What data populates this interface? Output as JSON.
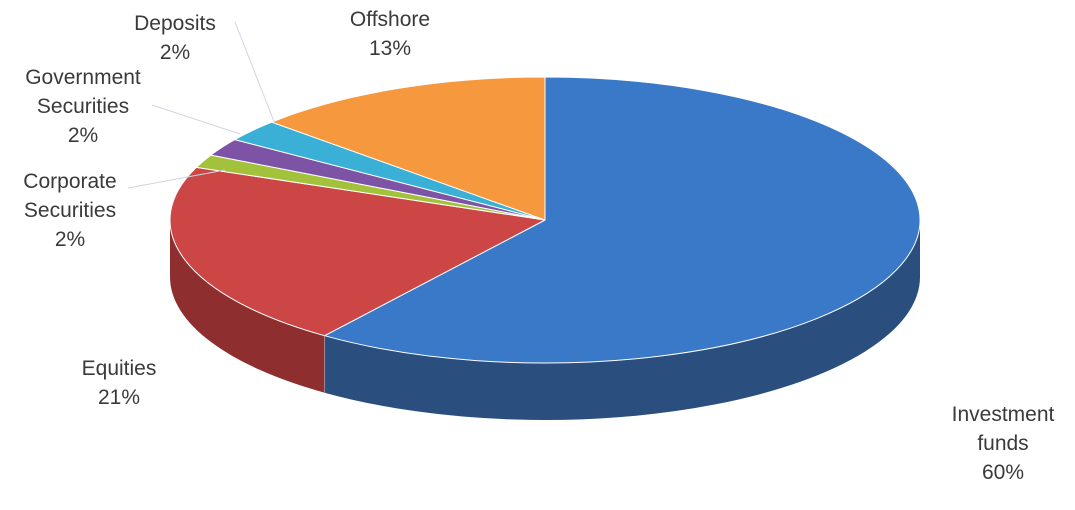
{
  "chart_data": {
    "type": "pie",
    "style": "3d",
    "title": "",
    "slices": [
      {
        "label": [
          "Investment",
          "funds"
        ],
        "percent_text": "60%",
        "value": 60,
        "color": "#3a78c8",
        "side_color": "#2a4f7e"
      },
      {
        "label": [
          "Equities"
        ],
        "percent_text": "21%",
        "value": 21,
        "color": "#cc4646",
        "side_color": "#8f2e2e"
      },
      {
        "label": [
          "Corporate",
          "Securities"
        ],
        "percent_text": "2%",
        "value": 1.5,
        "color": "#a3c23c",
        "side_color": "#6e8427"
      },
      {
        "label": [
          "Government",
          "Securities"
        ],
        "percent_text": "2%",
        "value": 2,
        "color": "#7d53a6",
        "side_color": "#553870"
      },
      {
        "label": [
          "Deposits"
        ],
        "percent_text": "2%",
        "value": 2.5,
        "color": "#3ab0d6",
        "side_color": "#2a7891"
      },
      {
        "label": [
          "Offshore"
        ],
        "percent_text": "13%",
        "value": 13,
        "color": "#f6983e",
        "side_color": "#b06a26"
      }
    ]
  }
}
